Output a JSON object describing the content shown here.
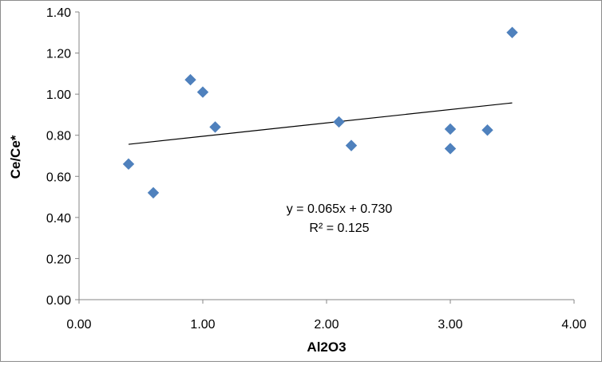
{
  "chart_data": {
    "type": "scatter",
    "xlabel": "Al2O3",
    "ylabel": "Ce/Ce*",
    "xlim": [
      0,
      4
    ],
    "ylim": [
      0,
      1.4
    ],
    "x_ticks": [
      "0.00",
      "1.00",
      "2.00",
      "3.00",
      "4.00"
    ],
    "y_ticks": [
      "0.00",
      "0.20",
      "0.40",
      "0.60",
      "0.80",
      "1.00",
      "1.20",
      "1.40"
    ],
    "grid": false,
    "series": [
      {
        "marker": "diamond",
        "color": "#4f81bd",
        "points": [
          {
            "x": 0.4,
            "y": 0.66
          },
          {
            "x": 0.6,
            "y": 0.52
          },
          {
            "x": 0.9,
            "y": 1.07
          },
          {
            "x": 1.0,
            "y": 1.01
          },
          {
            "x": 1.1,
            "y": 0.84
          },
          {
            "x": 2.1,
            "y": 0.865
          },
          {
            "x": 2.2,
            "y": 0.75
          },
          {
            "x": 3.0,
            "y": 0.83
          },
          {
            "x": 3.0,
            "y": 0.735
          },
          {
            "x": 3.3,
            "y": 0.825
          },
          {
            "x": 3.5,
            "y": 1.3
          }
        ]
      }
    ],
    "trendline": {
      "slope": 0.065,
      "intercept": 0.73,
      "x_range": [
        0.4,
        3.5
      ],
      "color": "#000000"
    },
    "annotations": {
      "equation": "y = 0.065x + 0.730",
      "r_squared": "R² = 0.125"
    }
  }
}
